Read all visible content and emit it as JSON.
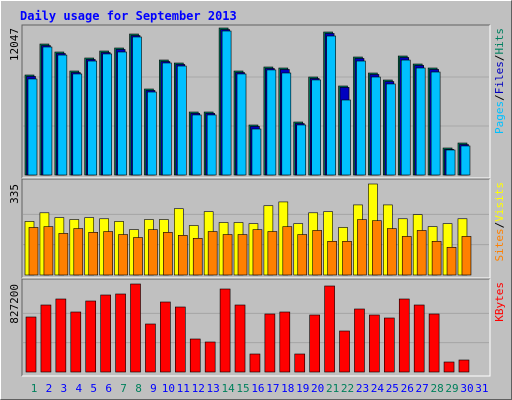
{
  "chart_data": [
    {
      "type": "bar",
      "title": "Daily usage for September 2013",
      "ylim": [
        0,
        12047
      ],
      "yticks": [
        12047
      ],
      "legend_separator": "/",
      "series": [
        {
          "name": "Hits",
          "color": "#008060",
          "values": [
            8195,
            10735,
            10080,
            8523,
            9588,
            10162,
            10408,
            11555,
            7048,
            9424,
            9178,
            5163,
            5163,
            12047,
            8523,
            4098,
            8851,
            8769,
            4343,
            8031,
            11719,
            7294,
            9670,
            8359,
            7785,
            9752,
            9096,
            8769,
            2213,
            2622,
            null
          ]
        },
        {
          "name": "Files",
          "color": "#0000c0",
          "values": [
            8080,
            10610,
            9960,
            8400,
            9470,
            10040,
            10290,
            11430,
            6930,
            9300,
            9060,
            5050,
            5050,
            11920,
            8400,
            3980,
            8730,
            8650,
            4220,
            7910,
            11600,
            7180,
            9550,
            8240,
            7660,
            9630,
            8980,
            8650,
            2100,
            2500,
            null
          ]
        },
        {
          "name": "Pages",
          "color": "#00c0ff",
          "values": [
            7870,
            10490,
            9830,
            8280,
            9340,
            9920,
            10080,
            11310,
            6800,
            9180,
            8930,
            4920,
            4920,
            11800,
            8280,
            3770,
            8610,
            8360,
            4100,
            7790,
            11390,
            6146,
            9340,
            8030,
            7460,
            9420,
            8770,
            8440,
            2050,
            2380,
            null
          ]
        }
      ]
    },
    {
      "type": "bar",
      "ylim": [
        0,
        335
      ],
      "yticks": [
        335
      ],
      "legend_separator": "/",
      "series": [
        {
          "name": "Visits",
          "color": "#ffff00",
          "values": [
            197,
            229,
            211,
            204,
            211,
            207,
            197,
            167,
            204,
            204,
            244,
            182,
            233,
            193,
            193,
            189,
            255,
            269,
            189,
            229,
            233,
            175,
            258,
            335,
            258,
            207,
            222,
            178,
            189,
            207,
            null
          ]
        },
        {
          "name": "Sites",
          "color": "#ff8000",
          "values": [
            175,
            178,
            153,
            171,
            157,
            160,
            149,
            138,
            167,
            157,
            146,
            135,
            160,
            149,
            149,
            167,
            160,
            178,
            149,
            164,
            124,
            124,
            204,
            200,
            171,
            142,
            164,
            124,
            102,
            142,
            null
          ]
        }
      ]
    },
    {
      "type": "bar",
      "ylim": [
        0,
        827200
      ],
      "yticks": [
        827200
      ],
      "categories": [
        "1",
        "2",
        "3",
        "4",
        "5",
        "6",
        "7",
        "8",
        "9",
        "10",
        "11",
        "12",
        "13",
        "14",
        "15",
        "16",
        "17",
        "18",
        "19",
        "20",
        "21",
        "22",
        "23",
        "24",
        "25",
        "26",
        "27",
        "28",
        "29",
        "30",
        "31"
      ],
      "category_colors": [
        "#00805c",
        "#0000ff",
        "#0000ff",
        "#0000ff",
        "#0000ff",
        "#0000ff",
        "#00805c",
        "#00805c",
        "#0000ff",
        "#0000ff",
        "#0000ff",
        "#0000ff",
        "#0000ff",
        "#00805c",
        "#00805c",
        "#0000ff",
        "#0000ff",
        "#0000ff",
        "#0000ff",
        "#0000ff",
        "#00805c",
        "#00805c",
        "#0000ff",
        "#0000ff",
        "#0000ff",
        "#0000ff",
        "#0000ff",
        "#00805c",
        "#00805c",
        "#0000ff",
        "#0000ff"
      ],
      "series": [
        {
          "name": "KBytes",
          "color": "#ff0000",
          "values": [
            517000,
            629800,
            686200,
            564000,
            667400,
            723800,
            733200,
            827200,
            451200,
            658000,
            611000,
            310200,
            282000,
            780200,
            629800,
            169200,
            545200,
            564000,
            169200,
            535800,
            808400,
            385400,
            592200,
            535800,
            507600,
            686200,
            629800,
            545200,
            94000,
            112800,
            null
          ]
        }
      ]
    }
  ]
}
